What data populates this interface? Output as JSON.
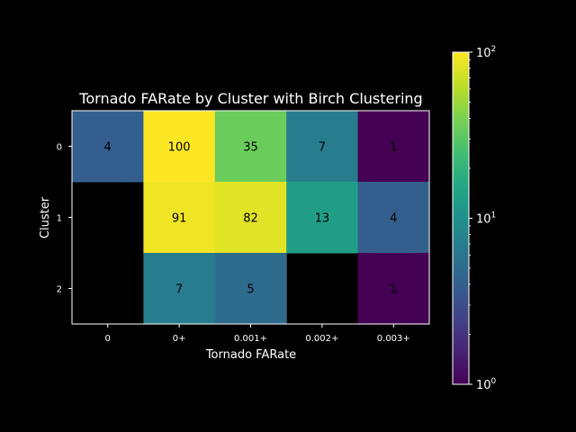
{
  "chart_data": {
    "type": "heatmap",
    "title": "Tornado FARate by Cluster with Birch Clustering",
    "xlabel": "Tornado FARate",
    "ylabel": "Cluster",
    "x_categories": [
      "0",
      "0+",
      "0.001+",
      "0.002+",
      "0.003+"
    ],
    "y_categories": [
      "0",
      "1",
      "2"
    ],
    "values": [
      [
        4,
        100,
        35,
        7,
        1
      ],
      [
        null,
        91,
        82,
        13,
        4
      ],
      [
        null,
        7,
        5,
        null,
        1
      ]
    ],
    "color_scale": "log",
    "colormap": "viridis",
    "colorbar": {
      "range": [
        1,
        100
      ],
      "ticks": [
        {
          "value": 1,
          "base": "10",
          "exp": "0"
        },
        {
          "value": 10,
          "base": "10",
          "exp": "1"
        },
        {
          "value": 100,
          "base": "10",
          "exp": "2"
        }
      ]
    },
    "missing_color": "#000000",
    "grid": false
  }
}
